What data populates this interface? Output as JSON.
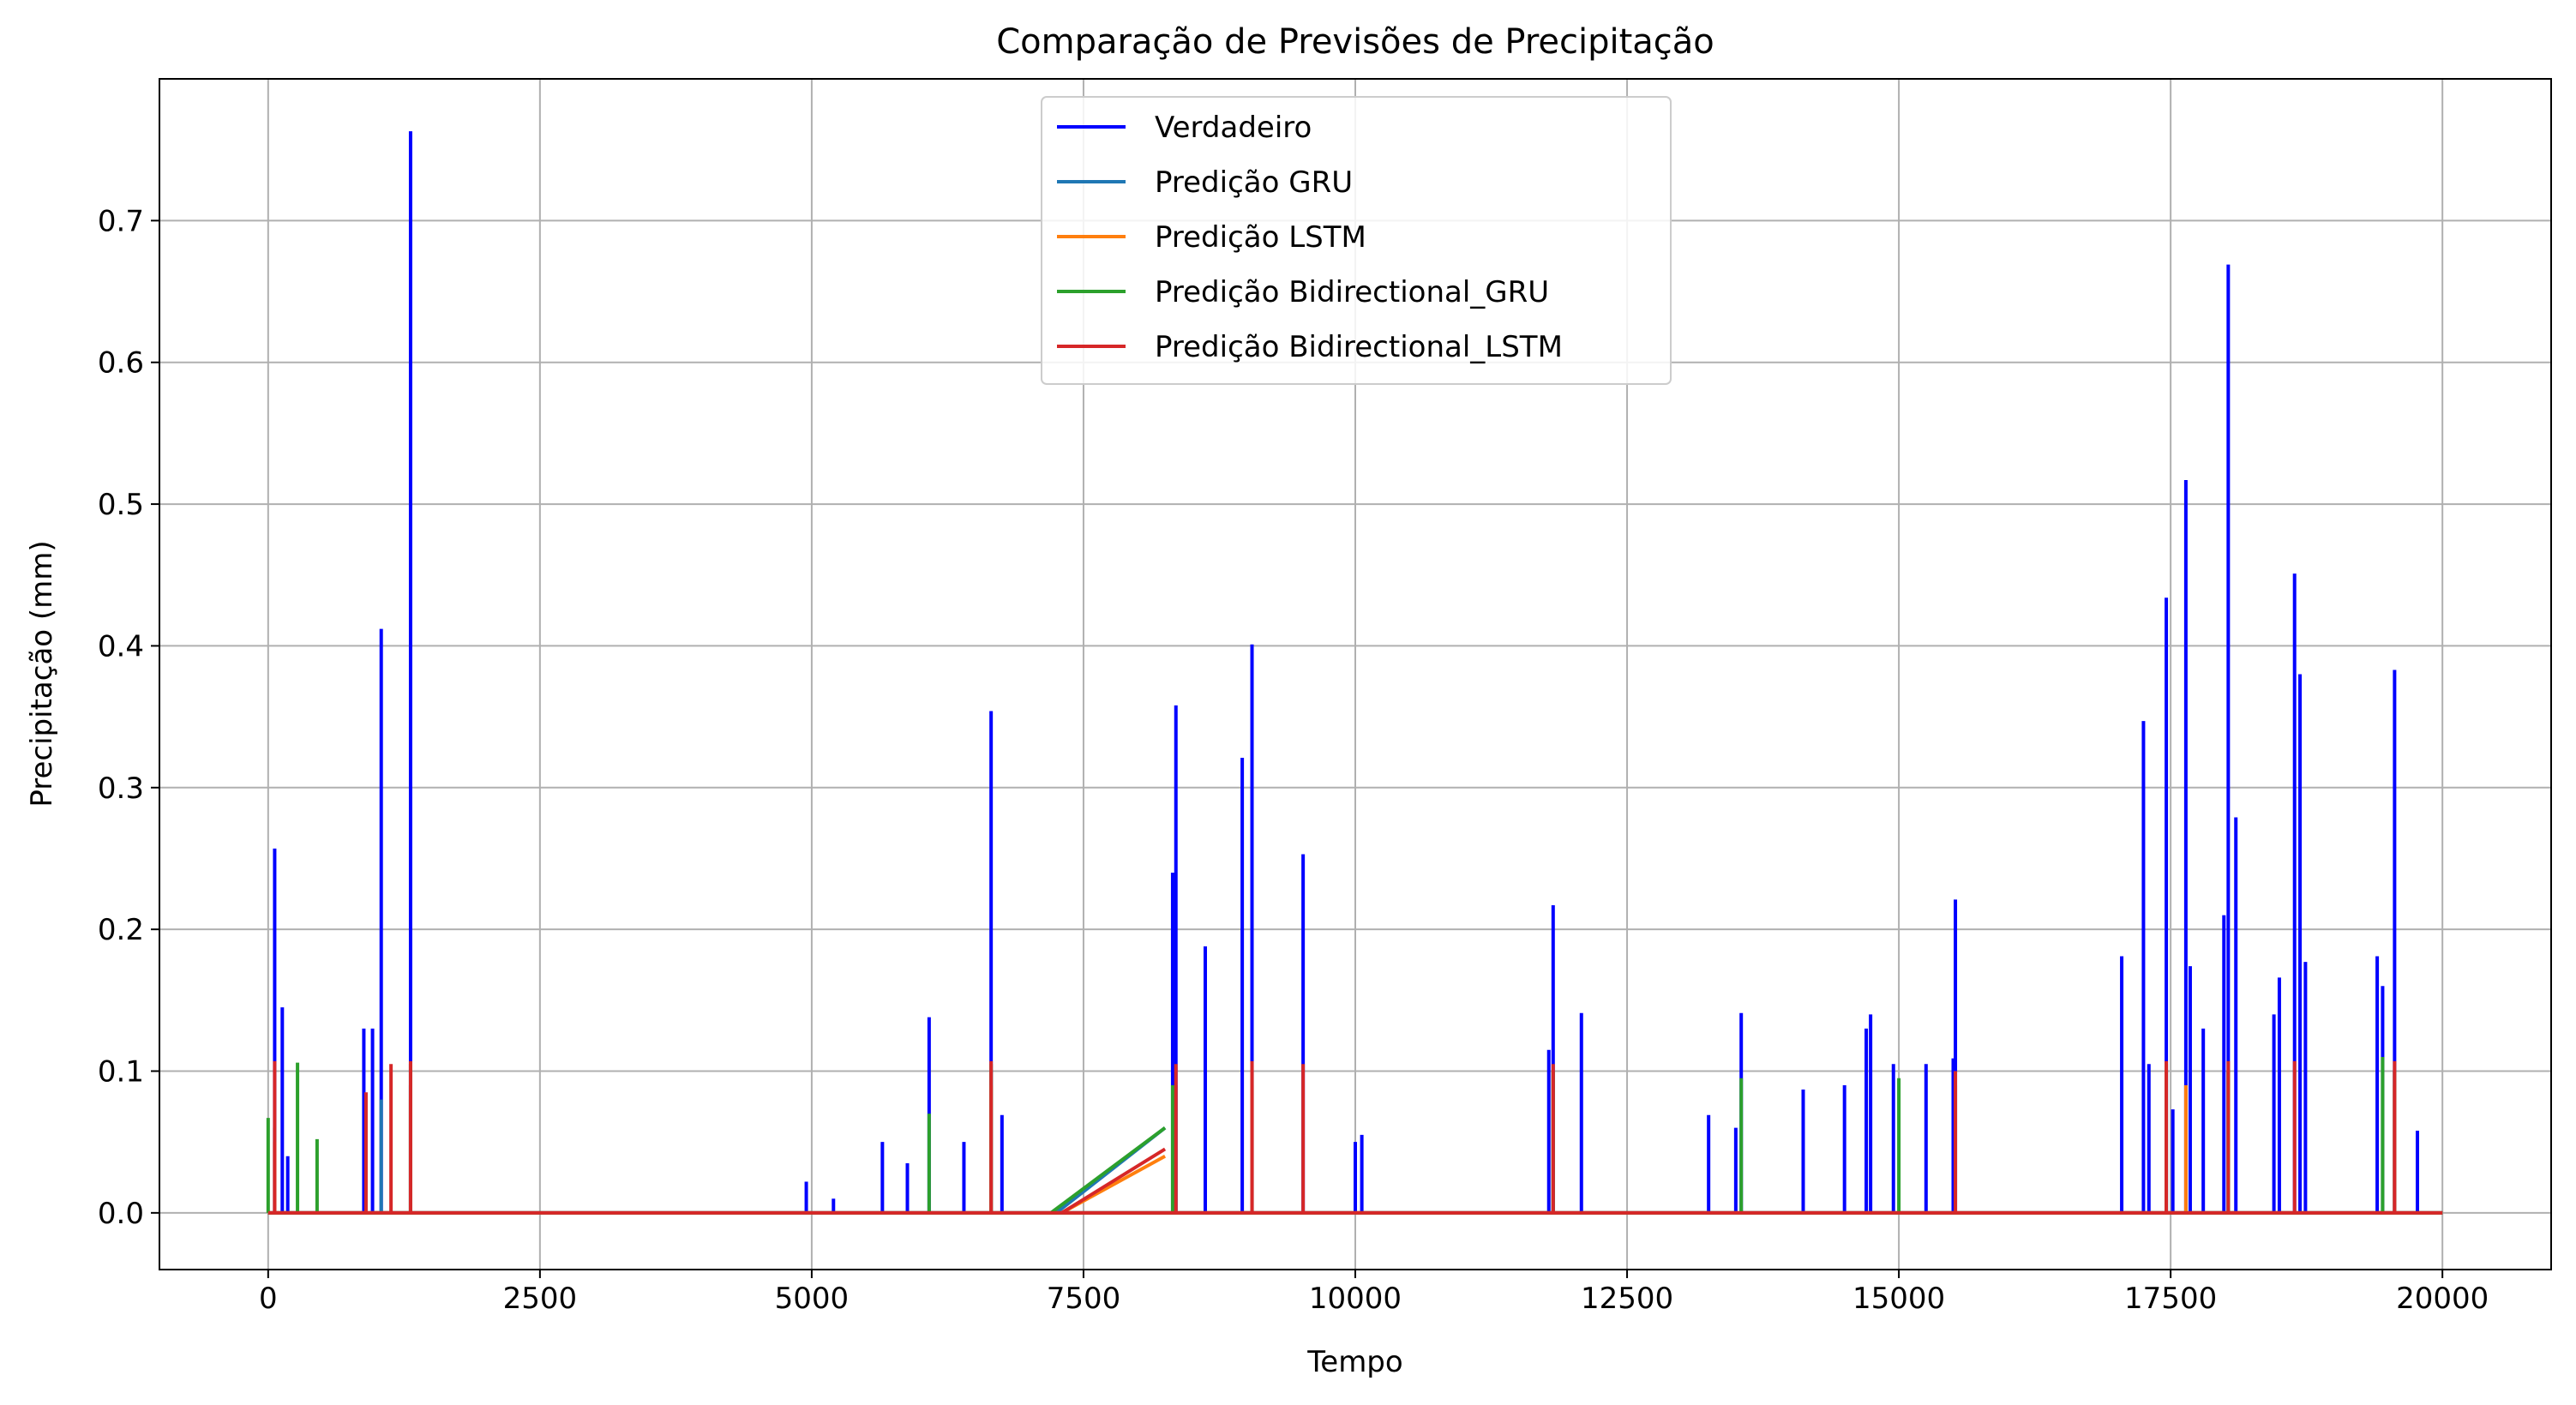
{
  "chart_data": {
    "type": "line",
    "title": "Comparação de Previsões de Precipitação",
    "xlabel": "Tempo",
    "ylabel": "Precipitação (mm)",
    "xlim": [
      -1000,
      21000
    ],
    "ylim": [
      -0.04,
      0.8
    ],
    "xticks": [
      0,
      2500,
      5000,
      7500,
      10000,
      12500,
      15000,
      17500,
      20000
    ],
    "xtick_labels": [
      "0",
      "2500",
      "5000",
      "7500",
      "10000",
      "12500",
      "15000",
      "17500",
      "20000"
    ],
    "yticks": [
      0.0,
      0.1,
      0.2,
      0.3,
      0.4,
      0.5,
      0.6,
      0.7
    ],
    "ytick_labels": [
      "0.0",
      "0.1",
      "0.2",
      "0.3",
      "0.4",
      "0.5",
      "0.6",
      "0.7"
    ],
    "grid": true,
    "legend_position": "top-center",
    "colors": {
      "Verdadeiro": "#0000ff",
      "Predição GRU": "#1f77b4",
      "Predição LSTM": "#ff7f0e",
      "Predição Bidirectional_GRU": "#2ca02c",
      "Predição Bidirectional_LSTM": "#d62728"
    },
    "series": [
      {
        "name": "Verdadeiro",
        "peaks": [
          [
            60,
            0.257
          ],
          [
            130,
            0.145
          ],
          [
            180,
            0.04
          ],
          [
            880,
            0.13
          ],
          [
            960,
            0.13
          ],
          [
            1040,
            0.412
          ],
          [
            1310,
            0.763
          ],
          [
            4950,
            0.022
          ],
          [
            5200,
            0.01
          ],
          [
            5650,
            0.05
          ],
          [
            5880,
            0.035
          ],
          [
            6080,
            0.138
          ],
          [
            6400,
            0.05
          ],
          [
            6650,
            0.354
          ],
          [
            6750,
            0.069
          ],
          [
            8320,
            0.24
          ],
          [
            8350,
            0.358
          ],
          [
            8620,
            0.188
          ],
          [
            8960,
            0.321
          ],
          [
            9050,
            0.401
          ],
          [
            9520,
            0.253
          ],
          [
            10000,
            0.05
          ],
          [
            10060,
            0.055
          ],
          [
            11780,
            0.115
          ],
          [
            11820,
            0.217
          ],
          [
            12080,
            0.141
          ],
          [
            13250,
            0.069
          ],
          [
            13500,
            0.06
          ],
          [
            13550,
            0.141
          ],
          [
            14120,
            0.087
          ],
          [
            14500,
            0.09
          ],
          [
            14700,
            0.13
          ],
          [
            14740,
            0.14
          ],
          [
            14950,
            0.105
          ],
          [
            15250,
            0.105
          ],
          [
            15500,
            0.109
          ],
          [
            15520,
            0.221
          ],
          [
            17050,
            0.181
          ],
          [
            17250,
            0.347
          ],
          [
            17300,
            0.105
          ],
          [
            17460,
            0.434
          ],
          [
            17520,
            0.073
          ],
          [
            17640,
            0.517
          ],
          [
            17680,
            0.174
          ],
          [
            17800,
            0.13
          ],
          [
            17990,
            0.21
          ],
          [
            18030,
            0.669
          ],
          [
            18100,
            0.279
          ],
          [
            18450,
            0.14
          ],
          [
            18500,
            0.166
          ],
          [
            18640,
            0.451
          ],
          [
            18690,
            0.38
          ],
          [
            18740,
            0.177
          ],
          [
            19400,
            0.181
          ],
          [
            19450,
            0.16
          ],
          [
            19560,
            0.383
          ],
          [
            19770,
            0.058
          ]
        ]
      },
      {
        "name": "Predição GRU",
        "peaks": [
          [
            60,
            0.06
          ],
          [
            1040,
            0.08
          ],
          [
            1310,
            0.09
          ],
          [
            6650,
            0.1
          ],
          [
            8350,
            0.09
          ],
          [
            9050,
            0.1
          ],
          [
            11820,
            0.1
          ],
          [
            15520,
            0.09
          ],
          [
            17460,
            0.1
          ],
          [
            18030,
            0.1
          ],
          [
            19560,
            0.1
          ]
        ],
        "ramp": [
          [
            7250,
            0.0
          ],
          [
            8250,
            0.06
          ]
        ]
      },
      {
        "name": "Predição LSTM",
        "peaks": [
          [
            60,
            0.05
          ],
          [
            1310,
            0.08
          ],
          [
            6650,
            0.09
          ],
          [
            9050,
            0.09
          ],
          [
            17640,
            0.09
          ],
          [
            19560,
            0.09
          ]
        ],
        "ramp": [
          [
            7300,
            0.0
          ],
          [
            8250,
            0.04
          ]
        ]
      },
      {
        "name": "Predição Bidirectional_GRU",
        "peaks": [
          [
            0,
            0.067
          ],
          [
            270,
            0.106
          ],
          [
            450,
            0.052
          ],
          [
            1310,
            0.105
          ],
          [
            6080,
            0.07
          ],
          [
            6650,
            0.105
          ],
          [
            8320,
            0.09
          ],
          [
            9050,
            0.1
          ],
          [
            11820,
            0.1
          ],
          [
            13550,
            0.095
          ],
          [
            15000,
            0.095
          ],
          [
            17460,
            0.105
          ],
          [
            18030,
            0.1
          ],
          [
            19450,
            0.11
          ],
          [
            19560,
            0.1
          ]
        ],
        "ramp": [
          [
            7200,
            0.0
          ],
          [
            8250,
            0.06
          ]
        ]
      },
      {
        "name": "Predição Bidirectional_LSTM",
        "peaks": [
          [
            60,
            0.107
          ],
          [
            900,
            0.085
          ],
          [
            1130,
            0.105
          ],
          [
            1310,
            0.107
          ],
          [
            6650,
            0.107
          ],
          [
            8350,
            0.105
          ],
          [
            9050,
            0.107
          ],
          [
            9520,
            0.105
          ],
          [
            11820,
            0.105
          ],
          [
            15520,
            0.1
          ],
          [
            17460,
            0.107
          ],
          [
            18030,
            0.107
          ],
          [
            18640,
            0.107
          ],
          [
            19560,
            0.107
          ]
        ],
        "ramp": [
          [
            7300,
            0.0
          ],
          [
            8250,
            0.045
          ]
        ]
      }
    ]
  }
}
